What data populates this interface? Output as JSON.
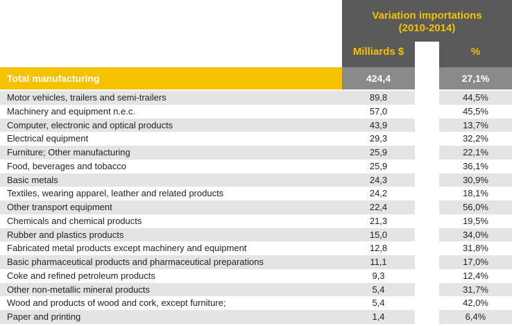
{
  "header": {
    "title_line1": "Variation importations",
    "title_line2": "(2010-2014)",
    "col1": "Milliards $",
    "col2": "%"
  },
  "total": {
    "label": "Total manufacturing",
    "value": "424,4",
    "percent": "27,1%"
  },
  "rows": [
    {
      "name": "Motor vehicles, trailers and semi-trailers",
      "value": "89,8",
      "percent": "44,5%"
    },
    {
      "name": "Machinery and equipment n.e.c.",
      "value": "57,0",
      "percent": "45,5%"
    },
    {
      "name": "Computer, electronic and optical products",
      "value": "43,9",
      "percent": "13,7%"
    },
    {
      "name": "Electrical equipment",
      "value": "29,3",
      "percent": "32,2%"
    },
    {
      "name": "Furniture; Other manufacturing",
      "value": "25,9",
      "percent": "22,1%"
    },
    {
      "name": "Food, beverages and tobacco",
      "value": "25,9",
      "percent": "36,1%"
    },
    {
      "name": "Basic metals",
      "value": "24,3",
      "percent": "30,9%"
    },
    {
      "name": "Textiles, wearing apparel, leather and related products",
      "value": "24,2",
      "percent": "18,1%"
    },
    {
      "name": "Other transport equipment",
      "value": "22,4",
      "percent": "56,0%"
    },
    {
      "name": "Chemicals and chemical products",
      "value": "21,3",
      "percent": "19,5%"
    },
    {
      "name": "Rubber and plastics products",
      "value": "15,0",
      "percent": "34,0%"
    },
    {
      "name": "Fabricated metal products except machinery and equipment",
      "value": "12,8",
      "percent": "31,8%"
    },
    {
      "name": "Basic pharmaceutical products and pharmaceutical preparations",
      "value": "11,1",
      "percent": "17,0%"
    },
    {
      "name": "Coke and refined petroleum products",
      "value": "9,3",
      "percent": "12,4%"
    },
    {
      "name": "Other non-metallic mineral products",
      "value": "5,4",
      "percent": "31,7%"
    },
    {
      "name": "Wood and products of wood and cork, except furniture;",
      "value": "5,4",
      "percent": "42,0%"
    },
    {
      "name": "Paper and printing",
      "value": "1,4",
      "percent": "6,4%"
    }
  ]
}
